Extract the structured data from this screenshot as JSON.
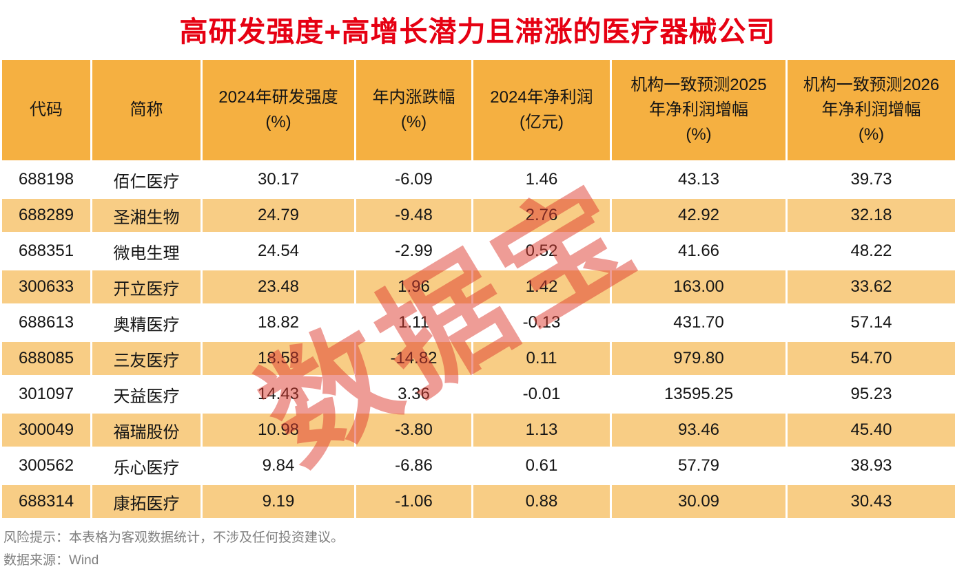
{
  "title": "高研发强度+高增长潜力且滞涨的医疗器械公司",
  "watermark": "数据宝",
  "colors": {
    "title_red": "#e60012",
    "header_orange": "#f5b041",
    "alt_row_orange": "#f8cd85",
    "row_white": "#ffffff",
    "cell_text": "#151515",
    "footer_gray": "#808080",
    "watermark_red": "rgba(222,58,45,0.5)"
  },
  "footer": {
    "risk_note": "风险提示：本表格为客观数据统计，不涉及任何投资建议。",
    "source": "数据来源：Wind"
  },
  "chart_data": {
    "type": "table",
    "title": "高研发强度+高增长潜力且滞涨的医疗器械公司",
    "columns": [
      "代码",
      "简称",
      "2024年研发强度(%)",
      "年内涨跌幅(%)",
      "2024年净利润(亿元)",
      "机构一致预测2025年净利润增幅(%)",
      "机构一致预测2026年净利润增幅(%)"
    ],
    "column_lines": [
      [
        "代码"
      ],
      [
        "简称"
      ],
      [
        "2024年研发强度",
        "(%)"
      ],
      [
        "年内涨跌幅",
        "(%)"
      ],
      [
        "2024年净利润",
        "(亿元)"
      ],
      [
        "机构一致预测2025",
        "年净利润增幅",
        "(%)"
      ],
      [
        "机构一致预测2026",
        "年净利润增幅",
        "(%)"
      ]
    ],
    "rows": [
      [
        "688198",
        "佰仁医疗",
        "30.17",
        "-6.09",
        "1.46",
        "43.13",
        "39.73"
      ],
      [
        "688289",
        "圣湘生物",
        "24.79",
        "-9.48",
        "2.76",
        "42.92",
        "32.18"
      ],
      [
        "688351",
        "微电生理",
        "24.54",
        "-2.99",
        "0.52",
        "41.66",
        "48.22"
      ],
      [
        "300633",
        "开立医疗",
        "23.48",
        "1.96",
        "1.42",
        "163.00",
        "33.62"
      ],
      [
        "688613",
        "奥精医疗",
        "18.82",
        "1.11",
        "-0.13",
        "431.70",
        "57.14"
      ],
      [
        "688085",
        "三友医疗",
        "18.58",
        "-14.82",
        "0.11",
        "979.80",
        "54.70"
      ],
      [
        "301097",
        "天益医疗",
        "14.43",
        "3.36",
        "-0.01",
        "13595.25",
        "95.23"
      ],
      [
        "300049",
        "福瑞股份",
        "10.98",
        "-3.80",
        "1.13",
        "93.46",
        "45.40"
      ],
      [
        "300562",
        "乐心医疗",
        "9.84",
        "-6.86",
        "0.61",
        "57.79",
        "38.93"
      ],
      [
        "688314",
        "康拓医疗",
        "9.19",
        "-1.06",
        "0.88",
        "30.09",
        "30.43"
      ]
    ]
  }
}
